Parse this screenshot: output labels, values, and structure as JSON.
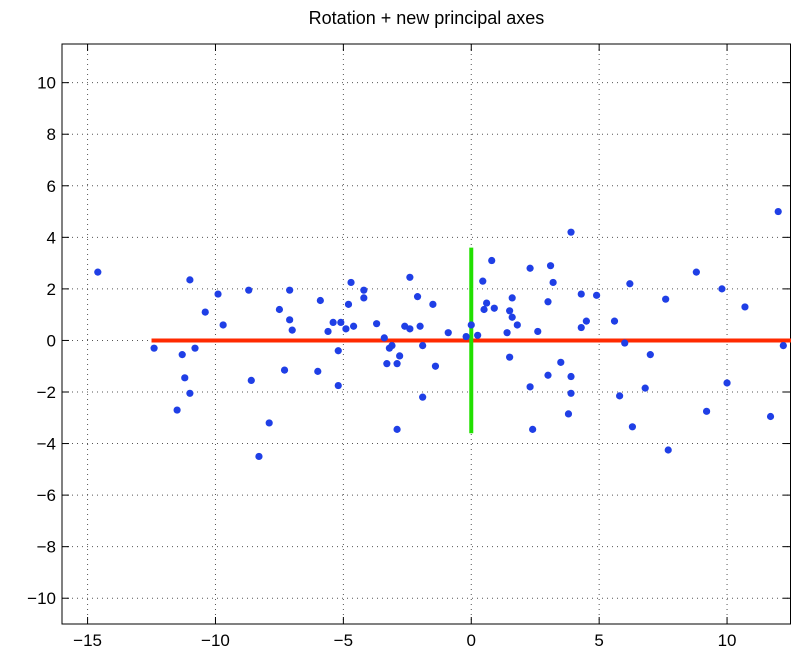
{
  "chart_data": {
    "type": "scatter",
    "title": "Rotation + new principal axes",
    "xlabel": "",
    "ylabel": "",
    "xlim": [
      -16,
      12.5
    ],
    "ylim": [
      -11,
      11.5
    ],
    "xticks": [
      -15,
      -10,
      -5,
      0,
      5,
      10
    ],
    "yticks": [
      -10,
      -8,
      -6,
      -4,
      -2,
      0,
      2,
      4,
      6,
      8,
      10
    ],
    "xtick_labels": [
      "−15",
      "−10",
      "−5",
      "0",
      "5",
      "10"
    ],
    "ytick_labels": [
      "−10",
      "−8",
      "−6",
      "−4",
      "−2",
      "0",
      "2",
      "4",
      "6",
      "8",
      "10"
    ],
    "grid": true,
    "grid_style": "dotted",
    "colors": {
      "points": "#1f3fe6",
      "axis1": "#ff2a00",
      "axis2": "#22e000"
    },
    "principal_axes": [
      {
        "x": [
          -12.5,
          12.5
        ],
        "y": [
          0,
          0
        ],
        "color": "#ff2a00"
      },
      {
        "x": [
          0,
          0
        ],
        "y": [
          -3.6,
          3.6
        ],
        "color": "#22e000"
      }
    ],
    "points": [
      [
        -14.6,
        2.65
      ],
      [
        -12.4,
        -0.3
      ],
      [
        -11.5,
        -2.7
      ],
      [
        -11.3,
        -0.55
      ],
      [
        -11.2,
        -1.45
      ],
      [
        -11.0,
        2.35
      ],
      [
        -11.0,
        -2.05
      ],
      [
        -10.8,
        -0.3
      ],
      [
        -10.4,
        1.1
      ],
      [
        -9.9,
        1.8
      ],
      [
        -9.7,
        0.6
      ],
      [
        -8.7,
        1.95
      ],
      [
        -8.6,
        -1.55
      ],
      [
        -8.3,
        -4.5
      ],
      [
        -7.9,
        -3.2
      ],
      [
        -7.5,
        1.2
      ],
      [
        -7.3,
        -1.15
      ],
      [
        -7.1,
        0.8
      ],
      [
        -7.1,
        1.95
      ],
      [
        -7.0,
        0.4
      ],
      [
        -6.0,
        -1.2
      ],
      [
        -5.9,
        1.55
      ],
      [
        -5.6,
        0.35
      ],
      [
        -5.4,
        0.7
      ],
      [
        -5.2,
        -0.4
      ],
      [
        -5.2,
        -1.75
      ],
      [
        -5.1,
        0.7
      ],
      [
        -4.9,
        0.45
      ],
      [
        -4.8,
        1.4
      ],
      [
        -4.7,
        2.25
      ],
      [
        -4.6,
        0.55
      ],
      [
        -4.2,
        1.95
      ],
      [
        -4.2,
        1.65
      ],
      [
        -3.7,
        0.65
      ],
      [
        -3.4,
        0.1
      ],
      [
        -3.3,
        -0.9
      ],
      [
        -3.2,
        -0.3
      ],
      [
        -3.1,
        -0.2
      ],
      [
        -2.9,
        -3.45
      ],
      [
        -2.9,
        -0.9
      ],
      [
        -2.8,
        -0.6
      ],
      [
        -2.6,
        0.55
      ],
      [
        -2.4,
        0.45
      ],
      [
        -2.4,
        2.45
      ],
      [
        -2.1,
        1.7
      ],
      [
        -2.0,
        0.55
      ],
      [
        -1.9,
        -0.2
      ],
      [
        -1.9,
        -2.2
      ],
      [
        -1.5,
        1.4
      ],
      [
        -1.4,
        -1.0
      ],
      [
        -0.9,
        0.3
      ],
      [
        -0.2,
        0.15
      ],
      [
        0.0,
        0.6
      ],
      [
        0.25,
        0.2
      ],
      [
        0.45,
        2.3
      ],
      [
        0.5,
        1.2
      ],
      [
        0.6,
        1.45
      ],
      [
        0.8,
        3.1
      ],
      [
        0.9,
        1.25
      ],
      [
        1.4,
        0.3
      ],
      [
        1.5,
        1.15
      ],
      [
        1.5,
        -0.65
      ],
      [
        1.6,
        1.65
      ],
      [
        1.6,
        0.9
      ],
      [
        1.8,
        0.6
      ],
      [
        2.3,
        2.8
      ],
      [
        2.3,
        -1.8
      ],
      [
        2.4,
        -3.45
      ],
      [
        2.6,
        0.35
      ],
      [
        3.0,
        -1.35
      ],
      [
        3.0,
        1.5
      ],
      [
        3.1,
        2.9
      ],
      [
        3.2,
        2.25
      ],
      [
        3.5,
        -0.85
      ],
      [
        3.8,
        -2.85
      ],
      [
        3.9,
        4.2
      ],
      [
        3.9,
        -2.05
      ],
      [
        3.9,
        -1.4
      ],
      [
        4.3,
        1.8
      ],
      [
        4.3,
        0.5
      ],
      [
        4.5,
        0.75
      ],
      [
        4.9,
        1.75
      ],
      [
        5.6,
        0.75
      ],
      [
        5.8,
        -2.15
      ],
      [
        6.0,
        -0.1
      ],
      [
        6.2,
        2.2
      ],
      [
        6.3,
        -3.35
      ],
      [
        6.8,
        -1.85
      ],
      [
        7.0,
        -0.55
      ],
      [
        7.6,
        1.6
      ],
      [
        7.7,
        -4.25
      ],
      [
        8.8,
        2.65
      ],
      [
        9.2,
        -2.75
      ],
      [
        9.8,
        2.0
      ],
      [
        10.0,
        -1.65
      ],
      [
        10.7,
        1.3
      ],
      [
        11.7,
        -2.95
      ],
      [
        12.0,
        5.0
      ],
      [
        12.2,
        -0.2
      ]
    ]
  }
}
